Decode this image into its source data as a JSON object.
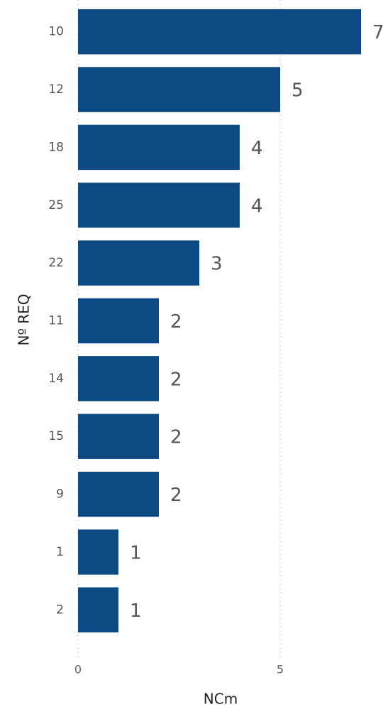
{
  "chart_data": {
    "type": "barh",
    "categories": [
      "10",
      "12",
      "18",
      "25",
      "22",
      "11",
      "14",
      "15",
      "9",
      "1",
      "2"
    ],
    "values": [
      7,
      5,
      4,
      4,
      3,
      2,
      2,
      2,
      2,
      1,
      1
    ],
    "color": "#0d4a83",
    "xlim": [
      0,
      7
    ],
    "xticks": [
      0,
      5
    ],
    "grid": true,
    "xlabel": "NCm",
    "ylabel": "Nº REQ"
  }
}
